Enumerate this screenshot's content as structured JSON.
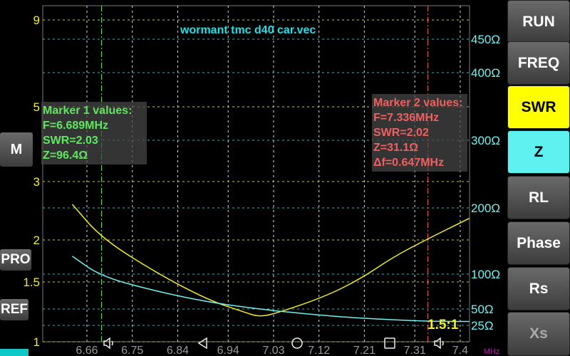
{
  "title": "wormant tmc d40 car.vec",
  "right_buttons": [
    {
      "label": "RUN",
      "active": false
    },
    {
      "label": "FREQ",
      "active": false
    },
    {
      "label": "SWR",
      "active": true,
      "color": "#ffff00"
    },
    {
      "label": "Z",
      "active": true,
      "color": "#5ff0f0"
    },
    {
      "label": "RL",
      "active": false
    },
    {
      "label": "Phase",
      "active": false
    },
    {
      "label": "Rs",
      "active": false
    },
    {
      "label": "Xs",
      "active": false
    }
  ],
  "left_buttons": {
    "m": "M",
    "pro": "PRO",
    "ref": "REF"
  },
  "marker1": {
    "heading": "Marker 1 values:",
    "f": "F=6.689MHz",
    "swr": "SWR=2.03",
    "z": "Z=96.4Ω",
    "color": "#5fe85f"
  },
  "marker2": {
    "heading": "Marker 2 values:",
    "f": "F=7.336MHz",
    "swr": "SWR=2.02",
    "z": "Z=31.1Ω",
    "df": "Δf=0.647MHz",
    "color": "#f06060"
  },
  "swr_ratio_label": "1.5:1",
  "nav_icons": [
    "volume-icon",
    "back-icon",
    "home-icon",
    "recents-icon",
    "volume-icon"
  ],
  "chart_data": {
    "type": "line",
    "xlabel": "MHz",
    "xlim": [
      6.631,
      7.418
    ],
    "x_ticks": [
      "6.66",
      "6.75",
      "6.84",
      "6.94",
      "7.03",
      "7.12",
      "7.21",
      "7.31",
      "7.4"
    ],
    "left_axis_ticks": [
      "9",
      "5",
      "3",
      "2",
      "1.5",
      "1"
    ],
    "right_axis_ticks": [
      "450Ω",
      "400Ω",
      "300Ω",
      "200Ω",
      "100Ω",
      "50Ω",
      "25Ω"
    ],
    "markers": [
      {
        "x": 6.689,
        "color": "#5fe85f"
      },
      {
        "x": 7.336,
        "color": "#f06060"
      }
    ],
    "series": [
      {
        "key": "swr",
        "color": "#f2ee20",
        "x": [
          6.631,
          6.689,
          6.8,
          6.9,
          6.97,
          7.0,
          7.03,
          7.127,
          7.198,
          7.268,
          7.336,
          7.418
        ],
        "y": [
          2.61,
          2.03,
          1.6,
          1.35,
          1.25,
          1.21,
          1.23,
          1.37,
          1.52,
          1.8,
          2.02,
          2.37
        ]
      },
      {
        "key": "z",
        "color": "#6ff0f0",
        "x": [
          6.631,
          6.689,
          6.8,
          6.9,
          7.0,
          7.1,
          7.2,
          7.336,
          7.418
        ],
        "y": [
          127,
          96.4,
          75,
          60,
          50,
          42,
          36,
          31.1,
          31
        ]
      }
    ]
  }
}
